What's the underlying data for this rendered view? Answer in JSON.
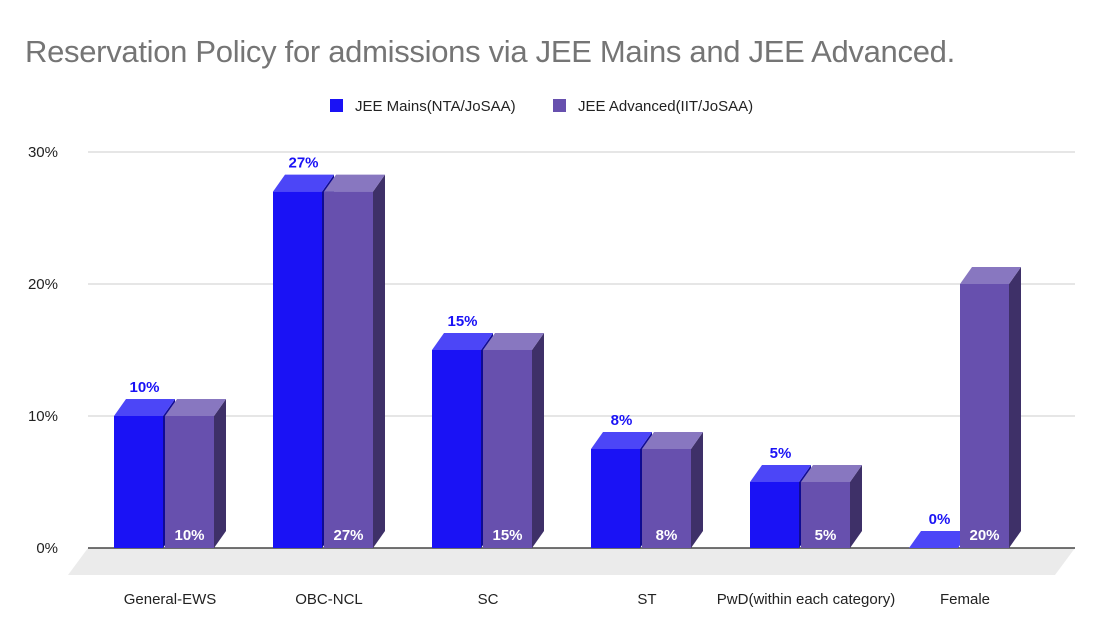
{
  "chart_data": {
    "type": "bar",
    "title": "Reservation Policy for admissions via JEE Mains and JEE Advanced.",
    "categories": [
      "General-EWS",
      "OBC-NCL",
      "SC",
      "ST",
      "PwD(within each category)",
      "Female"
    ],
    "series": [
      {
        "name": "JEE Mains(NTA/JoSAA)",
        "color": "#1a12f5",
        "values": [
          10,
          27,
          15,
          7.5,
          5,
          0
        ],
        "labels": [
          "10%",
          "27%",
          "15%",
          "8%",
          "5%",
          "0%"
        ]
      },
      {
        "name": "JEE Advanced(IIT/JoSAA)",
        "color": "#6750ae",
        "values": [
          10,
          27,
          15,
          7.5,
          5,
          20
        ],
        "labels": [
          "10%",
          "27%",
          "15%",
          "8%",
          "5%",
          "20%"
        ]
      }
    ],
    "y_ticks": [
      "0%",
      "10%",
      "20%",
      "30%"
    ],
    "ylim": [
      0,
      30
    ],
    "grid": true,
    "legend_position": "top",
    "style": "3d-bar"
  }
}
